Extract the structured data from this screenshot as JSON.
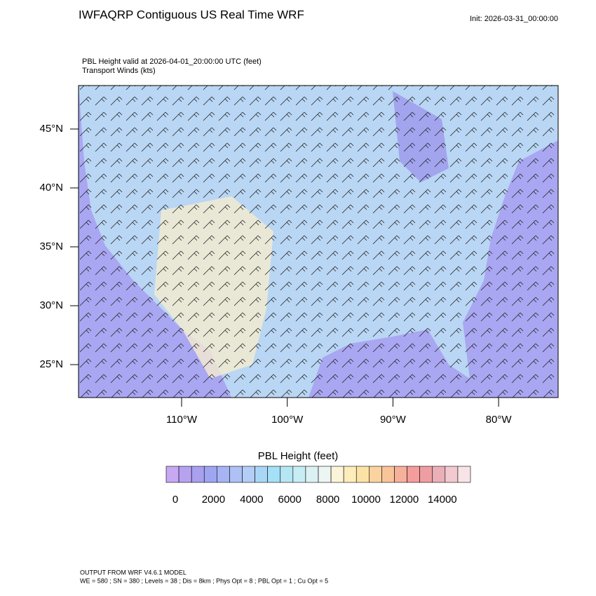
{
  "header": {
    "title": "IWFAQRP Contiguous US Real Time WRF",
    "init": "Init: 2026-03-31_00:00:00",
    "field": "PBL Height valid at 2026-04-01_20:00:00 UTC   (feet)",
    "overlay": "Transport Winds   (kts)"
  },
  "map": {
    "yticks": [
      {
        "value": 45,
        "label": "45°N"
      },
      {
        "value": 40,
        "label": "40°N"
      },
      {
        "value": 35,
        "label": "35°N"
      },
      {
        "value": 30,
        "label": "30°N"
      },
      {
        "value": 25,
        "label": "25°N"
      }
    ],
    "xticks": [
      {
        "value": -110,
        "label": "110°W"
      },
      {
        "value": -100,
        "label": "100°W"
      },
      {
        "value": -90,
        "label": "90°W"
      },
      {
        "value": -80,
        "label": "80°W"
      }
    ]
  },
  "colorbar": {
    "title": "PBL Height  (feet)",
    "ticks": [
      0,
      2000,
      4000,
      6000,
      8000,
      10000,
      12000,
      14000
    ],
    "colors": [
      "#c7a8f2",
      "#b7a2f2",
      "#a9a0f0",
      "#9ea6f2",
      "#a6b4f4",
      "#adc1f5",
      "#b2cdf6",
      "#aad6f6",
      "#a4e0f6",
      "#b5e6f4",
      "#c8ecf4",
      "#dbf1f4",
      "#ecf5f2",
      "#fbf4d8",
      "#fcedba",
      "#fbe3a8",
      "#fbd39e",
      "#f8c49a",
      "#f7b09a",
      "#f49d9c",
      "#ee9ea2",
      "#eab0b8",
      "#f2c9d0",
      "#f8e3e6"
    ]
  },
  "footer": {
    "line1": "OUTPUT FROM WRF V4.6.1 MODEL",
    "line2": "WE = 580 ; SN = 380 ; Levels = 38 ; Dis = 8km ; Phys Opt = 8 ; PBL Opt = 1 ; Cu Opt = 5"
  }
}
